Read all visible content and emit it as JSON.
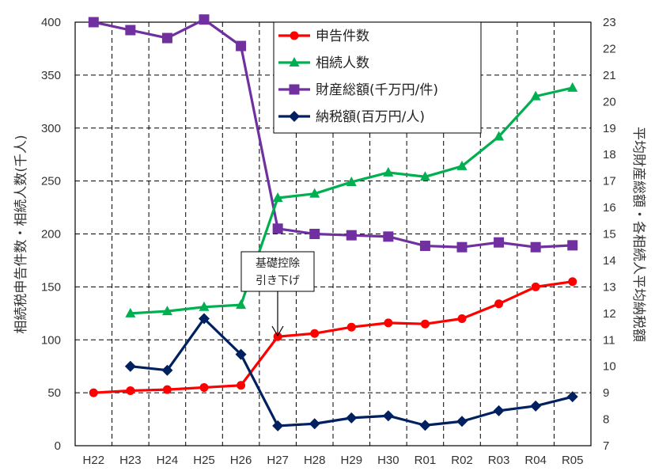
{
  "chart_data": {
    "type": "line",
    "categories": [
      "H22",
      "H23",
      "H24",
      "H25",
      "H26",
      "H27",
      "H28",
      "H29",
      "H30",
      "R01",
      "R02",
      "R03",
      "R04",
      "R05"
    ],
    "left_axis": {
      "label": "相続税申告件数・相続人数(千人)",
      "ylim": [
        0,
        400
      ],
      "ticks": [
        "0",
        "50",
        "100",
        "150",
        "200",
        "250",
        "300",
        "350",
        "400"
      ]
    },
    "right_axis": {
      "label": "平均財産総額・各相続人平均納税額",
      "ylim": [
        7,
        23
      ],
      "ticks": [
        "7",
        "8",
        "9",
        "10",
        "11",
        "12",
        "13",
        "14",
        "15",
        "16",
        "17",
        "18",
        "19",
        "20",
        "21",
        "22",
        "23"
      ]
    },
    "series": [
      {
        "name": "申告件数",
        "axis": "left",
        "color": "#ff0000",
        "marker": "circle",
        "values": [
          50,
          52,
          53,
          55,
          57,
          103,
          106,
          112,
          116,
          115,
          120,
          134,
          150,
          155
        ]
      },
      {
        "name": "相続人数",
        "axis": "left",
        "color": "#00b050",
        "marker": "triangle",
        "values": [
          null,
          125,
          127,
          131,
          133,
          234,
          238,
          249,
          258,
          254,
          264,
          292,
          330,
          338
        ]
      },
      {
        "name": "財産総額(千万円/件)",
        "axis": "right",
        "color": "#7030a0",
        "marker": "square",
        "values": [
          23.0,
          22.7,
          22.4,
          23.1,
          22.1,
          15.2,
          15.0,
          14.95,
          14.9,
          14.55,
          14.5,
          14.68,
          14.5,
          14.57
        ]
      },
      {
        "name": "納税額(百万円/人)",
        "axis": "right",
        "color": "#002060",
        "marker": "diamond",
        "values": [
          null,
          10.0,
          9.85,
          11.8,
          10.45,
          7.75,
          7.83,
          8.05,
          8.13,
          7.77,
          7.92,
          8.32,
          8.5,
          8.85
        ]
      }
    ],
    "annotation": {
      "lines": [
        "基礎控除",
        "引き下げ"
      ],
      "category": "H27"
    },
    "grid": true,
    "legend_position": "top-center"
  }
}
